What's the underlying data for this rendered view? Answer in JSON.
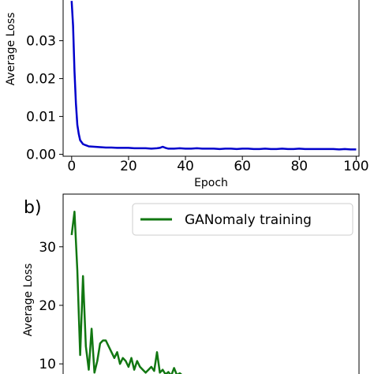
{
  "chart_data": [
    {
      "type": "line",
      "panel_label": "",
      "xlabel": "Epoch",
      "ylabel": "Average Loss",
      "xlim": [
        -3,
        101
      ],
      "ylim": [
        -0.0005,
        0.042
      ],
      "xticks": [
        0,
        20,
        40,
        60,
        80,
        100
      ],
      "yticks": [
        0.0,
        0.01,
        0.02,
        0.03
      ],
      "ytick_labels": [
        "0.00",
        "0.01",
        "0.02",
        "0.03"
      ],
      "legend": null,
      "series": [
        {
          "color": "#0000cc",
          "x": [
            0,
            0.5,
            1,
            1.5,
            2,
            2.5,
            3,
            4,
            5,
            6,
            8,
            10,
            12,
            14,
            16,
            18,
            20,
            22,
            24,
            26,
            28,
            30,
            31,
            32,
            33,
            34,
            36,
            38,
            40,
            42,
            44,
            46,
            48,
            50,
            52,
            54,
            56,
            58,
            60,
            62,
            64,
            66,
            68,
            70,
            72,
            74,
            76,
            78,
            80,
            82,
            84,
            86,
            88,
            90,
            92,
            94,
            96,
            98,
            100
          ],
          "y": [
            0.0405,
            0.034,
            0.022,
            0.0135,
            0.0078,
            0.0054,
            0.0037,
            0.0027,
            0.0024,
            0.0021,
            0.002,
            0.0019,
            0.0018,
            0.0018,
            0.0017,
            0.0017,
            0.0017,
            0.0016,
            0.0016,
            0.0016,
            0.0015,
            0.0016,
            0.0017,
            0.002,
            0.0017,
            0.0015,
            0.0015,
            0.0016,
            0.0015,
            0.0015,
            0.0016,
            0.0015,
            0.0015,
            0.0015,
            0.0014,
            0.0015,
            0.0015,
            0.0014,
            0.0015,
            0.0015,
            0.0014,
            0.0014,
            0.0015,
            0.0014,
            0.0014,
            0.0015,
            0.0014,
            0.0014,
            0.0015,
            0.0014,
            0.0014,
            0.0014,
            0.0014,
            0.0014,
            0.0014,
            0.0013,
            0.0014,
            0.0013,
            0.0013
          ]
        }
      ]
    },
    {
      "type": "line",
      "panel_label": "b)",
      "xlabel": "",
      "ylabel": "Average Loss",
      "xlim": [
        -3,
        101
      ],
      "ylim": [
        8,
        39
      ],
      "yticks": [
        10,
        20,
        30
      ],
      "ytick_labels": [
        "10",
        "20",
        "30"
      ],
      "legend": "top-right",
      "series": [
        {
          "name": "GANomaly training",
          "color": "#117711",
          "x": [
            0,
            1,
            2,
            3,
            4,
            5,
            6,
            7,
            8,
            9,
            10,
            11,
            12,
            13,
            14,
            15,
            16,
            17,
            18,
            19,
            20,
            21,
            22,
            23,
            24,
            25,
            26,
            27,
            28,
            29,
            30,
            31,
            32,
            33,
            34,
            35,
            36,
            37,
            38,
            39,
            40
          ],
          "y": [
            32,
            36,
            26,
            11.5,
            25,
            13,
            9,
            16,
            8.5,
            10.5,
            13.5,
            14,
            14,
            13,
            12,
            11,
            12,
            10,
            11,
            10.5,
            9.5,
            11,
            9,
            10.5,
            9.5,
            9,
            8.5,
            9,
            9.5,
            8.8,
            12,
            8.5,
            9,
            8.2,
            8.6,
            8,
            9.3,
            8.1,
            8.4,
            8,
            7.8
          ]
        }
      ]
    }
  ]
}
